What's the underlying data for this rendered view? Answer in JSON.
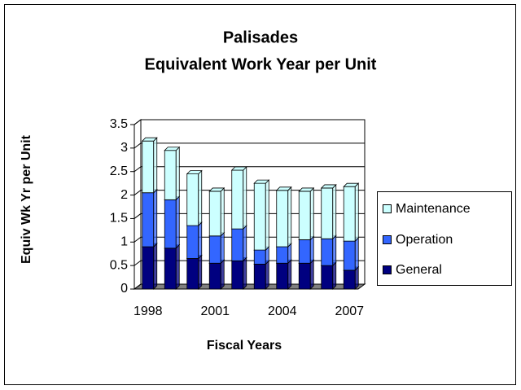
{
  "chart_data": {
    "type": "stacked_bar_3d",
    "title": "Palisades",
    "subtitle": "Equivalent Work Year per Unit",
    "y_label": "Equiv Wk Yr per Unit",
    "x_label": "Fiscal Years",
    "categories": [
      "1998",
      null,
      null,
      "2001",
      null,
      null,
      "2004",
      null,
      null,
      "2007"
    ],
    "series": [
      {
        "name": "General",
        "color": "#000080",
        "values": [
          0.9,
          0.87,
          0.65,
          0.55,
          0.6,
          0.53,
          0.55,
          0.55,
          0.5,
          0.4
        ]
      },
      {
        "name": "Operation",
        "color": "#3366ff",
        "values": [
          1.15,
          1.03,
          0.7,
          0.58,
          0.68,
          0.3,
          0.35,
          0.5,
          0.57,
          0.62
        ]
      },
      {
        "name": "Maintenance",
        "color": "#ccffff",
        "values": [
          1.1,
          1.05,
          1.1,
          0.95,
          1.25,
          1.42,
          1.2,
          1.03,
          1.08,
          1.16
        ]
      }
    ],
    "ylim": [
      0,
      3.5
    ],
    "yticks": [
      0,
      0.5,
      1,
      1.5,
      2,
      2.5,
      3,
      3.5
    ],
    "grid": true,
    "legend": "right"
  }
}
